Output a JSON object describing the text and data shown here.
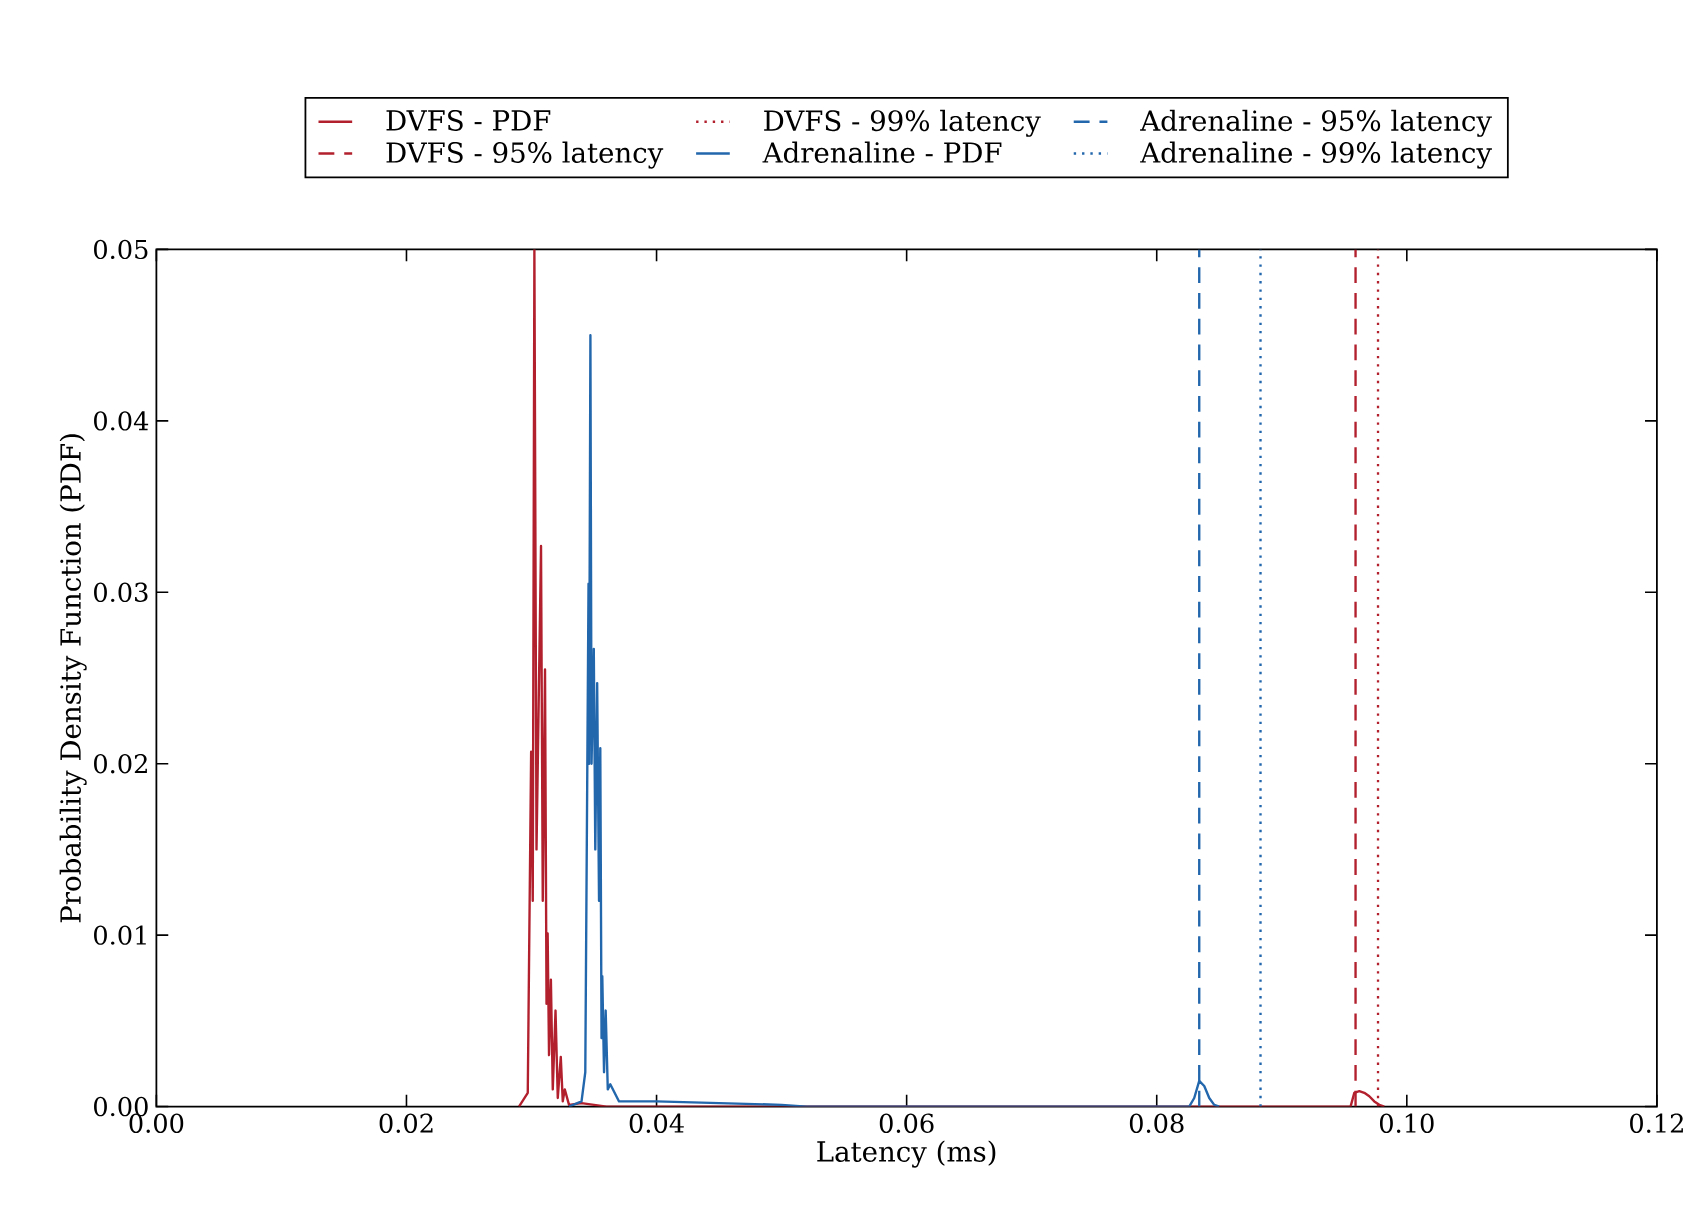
{
  "chart_data": {
    "type": "line",
    "xlabel": "Latency (ms)",
    "ylabel": "Probability Density Function (PDF)",
    "xlim": [
      0,
      0.12
    ],
    "ylim": [
      0,
      0.05
    ],
    "xticks": [
      {
        "value": 0,
        "label": "0.00"
      },
      {
        "value": 0.02,
        "label": "0.02"
      },
      {
        "value": 0.04,
        "label": "0.04"
      },
      {
        "value": 0.06,
        "label": "0.06"
      },
      {
        "value": 0.08,
        "label": "0.08"
      },
      {
        "value": 0.1,
        "label": "0.10"
      },
      {
        "value": 0.12,
        "label": "0.12"
      }
    ],
    "yticks": [
      {
        "value": 0,
        "label": "0.00"
      },
      {
        "value": 0.01,
        "label": "0.01"
      },
      {
        "value": 0.02,
        "label": "0.02"
      },
      {
        "value": 0.03,
        "label": "0.03"
      },
      {
        "value": 0.04,
        "label": "0.04"
      },
      {
        "value": 0.05,
        "label": "0.05"
      }
    ],
    "legend": "top",
    "grid": false,
    "series": [
      {
        "name": "DVFS - PDF",
        "color": "#b2202e",
        "x": [
          0.029,
          0.0297,
          0.02997,
          0.0301,
          0.03023,
          0.0304,
          0.03076,
          0.0309,
          0.03108,
          0.0312,
          0.03129,
          0.0314,
          0.03155,
          0.0317,
          0.03192,
          0.0321,
          0.03234,
          0.0325,
          0.03266,
          0.033,
          0.034,
          0.035,
          0.036,
          0.0955,
          0.0958,
          0.0962,
          0.0966,
          0.097,
          0.0974,
          0.0978,
          0.0982
        ],
        "values": [
          0,
          0.0008,
          0.0207,
          0.012,
          0.05,
          0.015,
          0.0327,
          0.012,
          0.0255,
          0.006,
          0.0101,
          0.003,
          0.0074,
          0.001,
          0.0056,
          0.0005,
          0.0029,
          0.0003,
          0.001,
          0.0001,
          0.0002,
          0.0001,
          0,
          0,
          0.0008,
          0.0009,
          0.0008,
          0.0006,
          0.0003,
          0.0001,
          0
        ]
      },
      {
        "name": "Adrenaline - PDF",
        "color": "#2266ac",
        "x": [
          0.033,
          0.034,
          0.0343,
          0.03456,
          0.0346,
          0.03471,
          0.0348,
          0.03498,
          0.0351,
          0.03525,
          0.0354,
          0.0355,
          0.0356,
          0.03566,
          0.0358,
          0.03593,
          0.0361,
          0.0363,
          0.037,
          0.04,
          0.045,
          0.05,
          0.052,
          0.0826,
          0.083,
          0.0834,
          0.0838,
          0.0842,
          0.0846,
          0.085
        ],
        "values": [
          0,
          0.0003,
          0.002,
          0.0305,
          0.02,
          0.045,
          0.02,
          0.0267,
          0.015,
          0.0247,
          0.012,
          0.0209,
          0.004,
          0.0076,
          0.002,
          0.0056,
          0.001,
          0.0013,
          0.0003,
          0.0003,
          0.0002,
          0.0001,
          0,
          0,
          0.0005,
          0.0015,
          0.0012,
          0.0005,
          0.0001,
          0
        ]
      }
    ],
    "ref_lines": [
      {
        "axis": "x",
        "value": 0.0959,
        "label": "DVFS - 95% latency",
        "color": "#b2202e",
        "line_style": "dashed"
      },
      {
        "axis": "x",
        "value": 0.0977,
        "label": "DVFS - 99% latency",
        "color": "#b2202e",
        "line_style": "dotted"
      },
      {
        "axis": "x",
        "value": 0.0834,
        "label": "Adrenaline - 95% latency",
        "color": "#2266ac",
        "line_style": "dashed"
      },
      {
        "axis": "x",
        "value": 0.0883,
        "label": "Adrenaline - 99% latency",
        "color": "#2266ac",
        "line_style": "dotted"
      }
    ]
  }
}
